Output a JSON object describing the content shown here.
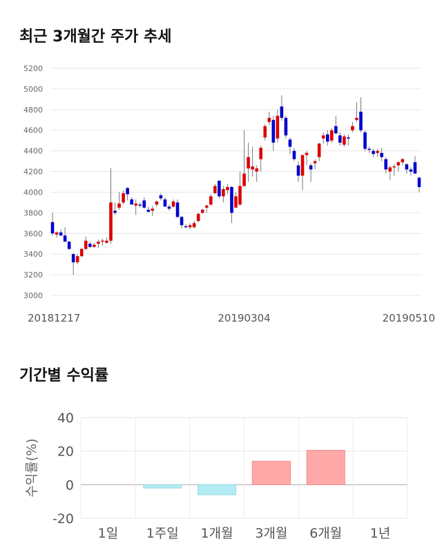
{
  "chart_data": [
    {
      "type": "candlestick",
      "title": "최근 3개월간 주가 추세",
      "categories": [
        "20181217",
        null,
        null,
        null,
        null,
        null,
        null,
        null,
        null,
        null,
        null,
        null,
        null,
        null,
        null,
        null,
        null,
        null,
        null,
        null,
        null,
        null,
        null,
        null,
        null,
        null,
        null,
        null,
        null,
        null,
        null,
        null,
        null,
        null,
        null,
        null,
        null,
        null,
        null,
        null,
        null,
        null,
        null,
        null,
        null,
        null,
        "20190304",
        null,
        null,
        null,
        null,
        null,
        null,
        null,
        null,
        null,
        null,
        null,
        null,
        null,
        null,
        null,
        null,
        null,
        null,
        null,
        null,
        null,
        null,
        null,
        null,
        null,
        null,
        null,
        null,
        null,
        null,
        null,
        null,
        null,
        null,
        null,
        null,
        null,
        null,
        null,
        null,
        null,
        "20190510"
      ],
      "open": [
        3710,
        3590,
        3610,
        3580,
        3520,
        3400,
        3320,
        3380,
        3450,
        3500,
        3470,
        3500,
        3520,
        3510,
        3530,
        3820,
        3850,
        3900,
        4040,
        3930,
        3870,
        3880,
        3920,
        3830,
        3820,
        3880,
        3970,
        3930,
        3860,
        3860,
        3900,
        3760,
        3670,
        3660,
        3660,
        3720,
        3800,
        3850,
        3880,
        3990,
        4110,
        3960,
        4020,
        4050,
        3850,
        3880,
        4060,
        4230,
        4220,
        4200,
        4320,
        4530,
        4680,
        4700,
        4520,
        4830,
        4720,
        4510,
        4400,
        4260,
        4160,
        4360,
        4260,
        4280,
        4340,
        4520,
        4560,
        4500,
        4640,
        4550,
        4460,
        4530,
        4600,
        4700,
        4780,
        4580,
        4420,
        4400,
        4380,
        4380,
        4320,
        4200,
        4240,
        4260,
        4290,
        4270,
        4220,
        4290,
        4140
      ],
      "high": [
        3800,
        3620,
        3640,
        3660,
        3530,
        3410,
        3400,
        3460,
        3570,
        3520,
        3510,
        3540,
        3550,
        3560,
        4230,
        3900,
        4000,
        4020,
        4050,
        3950,
        3930,
        3900,
        3950,
        3860,
        3870,
        3920,
        3990,
        3950,
        3880,
        3930,
        3930,
        3770,
        3690,
        3700,
        3720,
        3800,
        3840,
        3880,
        3980,
        4080,
        4120,
        4060,
        4080,
        4060,
        4000,
        4200,
        4600,
        4480,
        4440,
        4260,
        4450,
        4660,
        4780,
        4740,
        4800,
        4940,
        4740,
        4530,
        4430,
        4300,
        4360,
        4400,
        4280,
        4320,
        4480,
        4580,
        4600,
        4620,
        4740,
        4580,
        4560,
        4560,
        4680,
        4870,
        4920,
        4600,
        4440,
        4420,
        4420,
        4430,
        4340,
        4260,
        4270,
        4300,
        4330,
        4280,
        4240,
        4350,
        4150
      ],
      "low": [
        3580,
        3560,
        3580,
        3540,
        3440,
        3200,
        3300,
        3370,
        3440,
        3460,
        3460,
        3460,
        3480,
        3500,
        3500,
        3780,
        3830,
        3880,
        3920,
        3880,
        3780,
        3850,
        3840,
        3800,
        3770,
        3860,
        3920,
        3860,
        3820,
        3850,
        3750,
        3650,
        3650,
        3640,
        3650,
        3710,
        3790,
        3800,
        3870,
        3980,
        3940,
        3900,
        3980,
        3700,
        3850,
        3870,
        4050,
        4100,
        4150,
        4100,
        4200,
        4500,
        4650,
        4400,
        4480,
        4690,
        4520,
        4370,
        4300,
        4100,
        4020,
        4260,
        4100,
        4220,
        4300,
        4470,
        4450,
        4480,
        4560,
        4450,
        4440,
        4450,
        4580,
        4680,
        4580,
        4400,
        4380,
        4340,
        4340,
        4300,
        4180,
        4120,
        4160,
        4200,
        4260,
        4180,
        4160,
        4180,
        4000
      ],
      "close": [
        3600,
        3610,
        3580,
        3520,
        3450,
        3320,
        3380,
        3450,
        3530,
        3470,
        3490,
        3520,
        3530,
        3530,
        3900,
        3800,
        3890,
        3990,
        3980,
        3880,
        3890,
        3870,
        3850,
        3810,
        3840,
        3910,
        3940,
        3860,
        3840,
        3910,
        3760,
        3680,
        3660,
        3680,
        3700,
        3790,
        3830,
        3870,
        3960,
        4060,
        3960,
        4030,
        4050,
        3800,
        3960,
        4060,
        4180,
        4340,
        4250,
        4230,
        4430,
        4640,
        4720,
        4480,
        4740,
        4720,
        4550,
        4440,
        4320,
        4160,
        4360,
        4380,
        4220,
        4300,
        4470,
        4550,
        4490,
        4600,
        4570,
        4480,
        4540,
        4520,
        4640,
        4720,
        4600,
        4420,
        4410,
        4370,
        4400,
        4340,
        4220,
        4240,
        4250,
        4290,
        4320,
        4220,
        4200,
        4180,
        4050
      ],
      "up_color": "#dd0000",
      "down_color": "#0000cc",
      "ylim": [
        3000,
        5200
      ],
      "yticks": [
        3000,
        3200,
        3400,
        3600,
        3800,
        4000,
        4200,
        4400,
        4600,
        4800,
        5000,
        5200
      ],
      "grid": true
    },
    {
      "type": "bar",
      "title": "기간별 수익률",
      "ylabel": "수익률(%)",
      "categories": [
        "1일",
        "1주일",
        "1개월",
        "3개월",
        "6개월",
        "1년"
      ],
      "values": [
        null,
        -2,
        -6,
        14,
        20.5,
        null
      ],
      "pos_color": "#ffa8a8",
      "neg_color": "#b3ecf5",
      "ylim": [
        -20,
        40
      ],
      "yticks": [
        -20,
        0,
        20,
        40
      ],
      "grid": true
    }
  ]
}
